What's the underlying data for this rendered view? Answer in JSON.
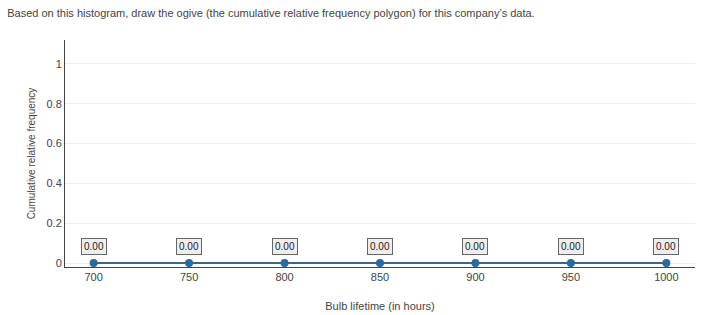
{
  "chart_data": {
    "type": "line",
    "title": "Based on this histogram, draw the ogive (the cumulative relative frequency polygon) for this company’s data.",
    "x_label": "Bulb lifetime (in hours)",
    "y_label": "Cumulative relative frequency",
    "x": [
      700,
      750,
      800,
      850,
      900,
      950,
      1000
    ],
    "values": [
      0.0,
      0.0,
      0.0,
      0.0,
      0.0,
      0.0,
      0.0
    ],
    "value_labels": [
      "0.00",
      "0.00",
      "0.00",
      "0.00",
      "0.00",
      "0.00",
      "0.00"
    ],
    "data_labels": true,
    "color": "#2b6a9e",
    "marker": "circle",
    "xlim": [
      685,
      1015
    ],
    "ylim": [
      -0.02,
      1.12
    ],
    "xticks": [
      700,
      750,
      800,
      850,
      900,
      950,
      1000
    ],
    "yticks": [
      0,
      0.2,
      0.4,
      0.6,
      0.8,
      1
    ],
    "grid": "y"
  }
}
